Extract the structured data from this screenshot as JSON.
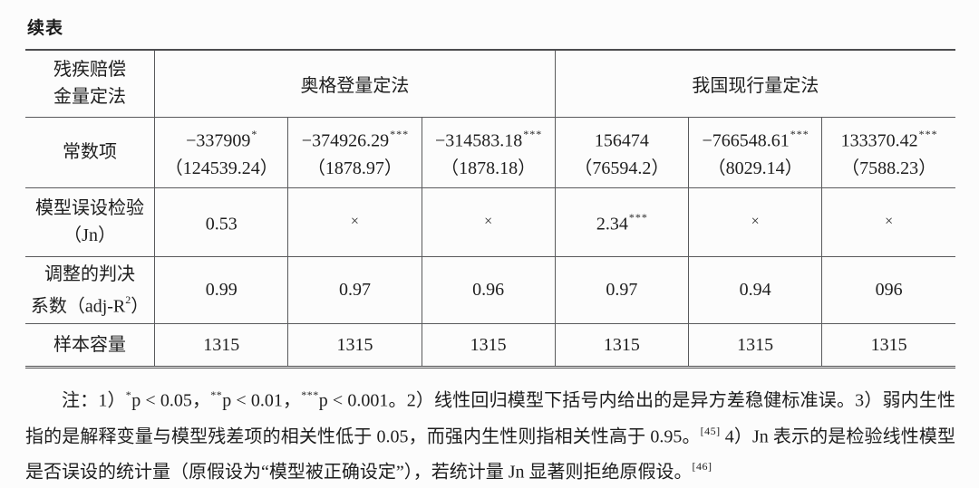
{
  "page": {
    "continued_label": "续表"
  },
  "table": {
    "corner": {
      "line1": "残疾赔偿",
      "line2": "金量定法"
    },
    "groups": [
      {
        "label": "奥格登量定法"
      },
      {
        "label": "我国现行量定法"
      }
    ],
    "rows": {
      "constant": {
        "label1": "常数项",
        "cells": [
          {
            "value": "−337909",
            "stars": "*",
            "se": "（124539.24）"
          },
          {
            "value": "−374926.29",
            "stars": "***",
            "se": "（1878.97）"
          },
          {
            "value": "−314583.18",
            "stars": "***",
            "se": "（1878.18）"
          },
          {
            "value": "156474",
            "stars": "",
            "se": "（76594.2）"
          },
          {
            "value": "−766548.61",
            "stars": "***",
            "se": "（8029.14）"
          },
          {
            "value": "133370.42",
            "stars": "***",
            "se": "（7588.23）"
          }
        ]
      },
      "jn_test": {
        "label1": "模型误设检验",
        "label2": "（Jn）",
        "cells": [
          {
            "value": "0.53",
            "stars": ""
          },
          {
            "value": "×",
            "stars": ""
          },
          {
            "value": "×",
            "stars": ""
          },
          {
            "value": "2.34",
            "stars": "***"
          },
          {
            "value": "×",
            "stars": ""
          },
          {
            "value": "×",
            "stars": ""
          }
        ]
      },
      "adj_r2": {
        "label1": "调整的判决",
        "label2_pre": "系数（adj-R",
        "label2_sup": "2",
        "label2_post": "）",
        "cells": [
          {
            "value": "0.99"
          },
          {
            "value": "0.97"
          },
          {
            "value": "0.96"
          },
          {
            "value": "0.97"
          },
          {
            "value": "0.94"
          },
          {
            "value": "096"
          }
        ]
      },
      "sample_size": {
        "label1": "样本容量",
        "cells": [
          {
            "value": "1315"
          },
          {
            "value": "1315"
          },
          {
            "value": "1315"
          },
          {
            "value": "1315"
          },
          {
            "value": "1315"
          },
          {
            "value": "1315"
          }
        ]
      }
    }
  },
  "notes": {
    "s0": "注：1）",
    "sup1": "*",
    "s2": "p < 0.05，",
    "sup3": "**",
    "s4": "p < 0.01，",
    "sup5": "***",
    "s6": "p < 0.001。2）线性回归模型下括号内给出的是异方差稳健标准误。3）弱内生性指的是解释变量与模型残差项的相关性低于 0.05，而强内生性则指相关性高于 0.95。",
    "sup7": "[45]",
    "s8": " 4）Jn 表示的是检验线性模型是否误设的统计量（原假设为“模型被正确设定”），若统计量 Jn 显著则拒绝原假设。",
    "sup9": "[46]"
  }
}
